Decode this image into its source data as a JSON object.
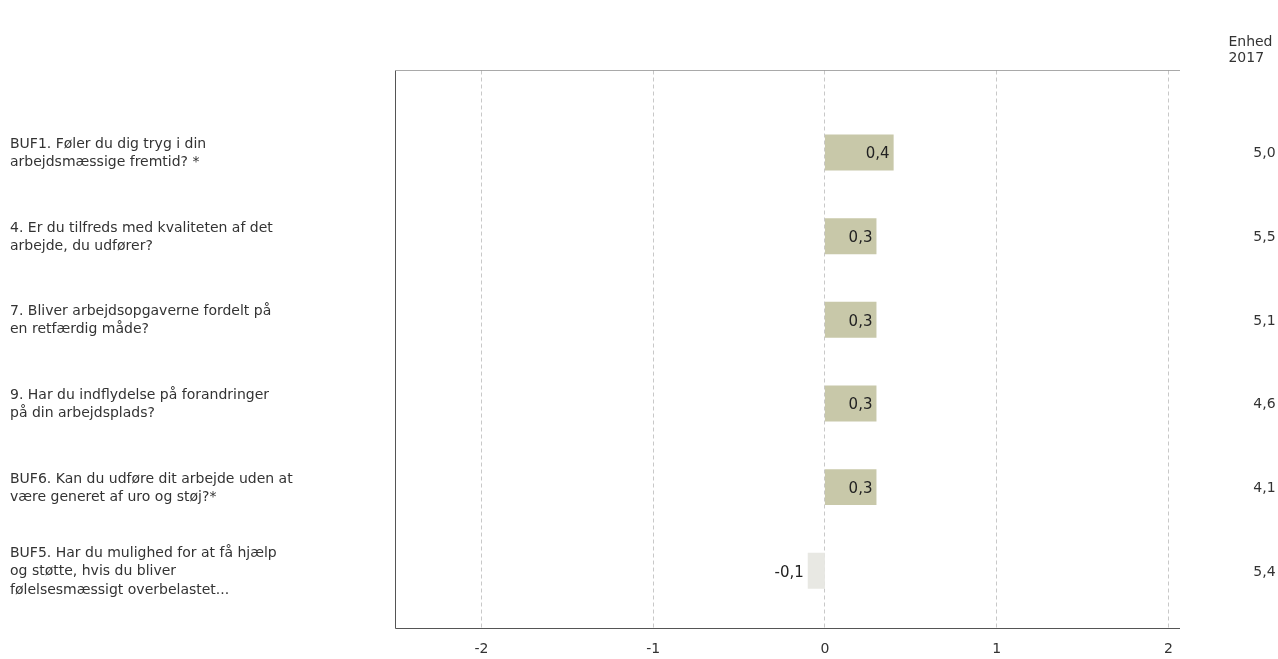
{
  "chart_data": {
    "type": "bar",
    "orientation": "horizontal",
    "categories": [
      "BUF1. Føler du dig tryg i din arbejdsmæssige fremtid? *",
      "4. Er du tilfreds med kvaliteten af det arbejde, du udfører?",
      "7. Bliver arbejdsopgaverne fordelt på en retfærdig måde?",
      "9. Har du indflydelse på forandringer på din arbejdsplads?",
      "BUF6. Kan du udføre dit arbejde uden at være generet af uro og støj?*",
      "BUF5. Har du mulighed for at få hjælp og støtte, hvis du bliver følelsesmæssigt overbelastet..."
    ],
    "values": [
      0.4,
      0.3,
      0.3,
      0.3,
      0.3,
      -0.1
    ],
    "value_labels": [
      "0,4",
      "0,3",
      "0,3",
      "0,3",
      "0,3",
      "-0,1"
    ],
    "colors": [
      "#c8c8a9",
      "#c8c8a9",
      "#c8c8a9",
      "#c8c8a9",
      "#c8c8a9",
      "#e8e8e3"
    ],
    "xlim": [
      -2.5,
      2.07
    ],
    "xticks": [
      -2,
      -1,
      0,
      1,
      2
    ],
    "grid": "x",
    "tick_labels": "x",
    "annotations": [
      "Enhed 2017",
      "5,0",
      "5,5",
      "5,1",
      "4,6",
      "4,1",
      "5,4"
    ]
  }
}
